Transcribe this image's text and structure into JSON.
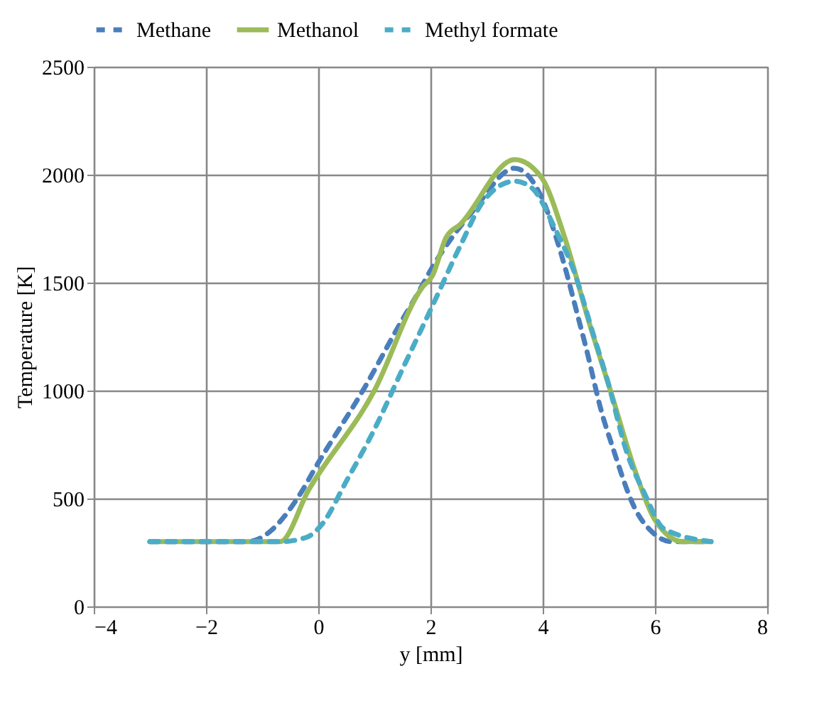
{
  "chart_data": {
    "type": "line",
    "xlabel": "y [mm]",
    "ylabel": "Temperature [K]",
    "xlim": [
      -4,
      8
    ],
    "xticks": [
      -4,
      -2,
      0,
      2,
      4,
      6,
      8
    ],
    "ylim": [
      0,
      2500
    ],
    "yticks": [
      0,
      500,
      1000,
      1500,
      2000,
      2500
    ],
    "grid": true,
    "legend": "top",
    "marker": "none",
    "series": [
      {
        "name": "Methane",
        "color": "#4a7ebb",
        "line_style": "dashed",
        "x": [
          -3,
          -1.27,
          -0.3,
          -0.08,
          0.84,
          1.48,
          1.73,
          2.03,
          2.78,
          3.5,
          3.97,
          4.32,
          4.64,
          4.77,
          5.06,
          5.23,
          5.65,
          5.97,
          6.3,
          7
        ],
        "values": [
          300,
          300,
          530,
          630,
          1020,
          1320,
          1430,
          1570,
          1840,
          2030,
          1900,
          1640,
          1330,
          1200,
          890,
          750,
          450,
          340,
          300,
          300
        ]
      },
      {
        "name": "Methanol",
        "color": "#9bbb59",
        "line_style": "solid",
        "x": [
          -3,
          -0.68,
          -0.17,
          1.0,
          1.86,
          2.03,
          2.28,
          2.53,
          3.5,
          3.97,
          4.39,
          4.81,
          5.23,
          5.65,
          5.99,
          6.5,
          7
        ],
        "values": [
          300,
          300,
          540,
          1000,
          1480,
          1530,
          1710,
          1770,
          2070,
          1990,
          1710,
          1330,
          980,
          625,
          405,
          300,
          300
        ]
      },
      {
        "name": "Methyl formate",
        "color": "#4bacc6",
        "line_style": "dashed",
        "x": [
          -3,
          -0.68,
          -0.21,
          0.08,
          0.5,
          1.0,
          1.52,
          2.03,
          2.53,
          2.95,
          3.5,
          3.8,
          4.22,
          4.56,
          4.89,
          5.15,
          5.49,
          5.82,
          6.16,
          7
        ],
        "values": [
          300,
          300,
          320,
          385,
          580,
          820,
          1110,
          1390,
          1670,
          1880,
          1970,
          1940,
          1750,
          1550,
          1270,
          1050,
          720,
          520,
          360,
          300
        ]
      }
    ]
  }
}
